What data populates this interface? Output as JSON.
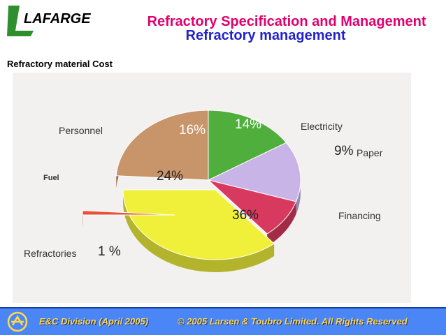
{
  "header": {
    "brand": "LAFARGE",
    "title": "Refractory Specification and Management",
    "subtitle": "Refractory management"
  },
  "section_title": "Refractory material Cost",
  "chart_data": {
    "type": "pie",
    "categories": [
      "Personnel",
      "Electricity",
      "Paper",
      "Financing",
      "Refractories",
      "Fuel"
    ],
    "values": [
      16,
      14,
      9,
      36,
      1,
      24
    ],
    "value_labels": [
      "16%",
      "14%",
      "9%",
      "36%",
      "1 %",
      "24%"
    ],
    "colors": [
      "#4fae3c",
      "#c9b4e8",
      "#d8395e",
      "#f0f03a",
      "#e8503a",
      "#c8946a"
    ],
    "title": "",
    "legend": "none"
  },
  "footer": {
    "division": "E&C Division (April 2005)",
    "copyright": "© 2005 Larsen & Toubro Limited. All Rights Reserved"
  }
}
